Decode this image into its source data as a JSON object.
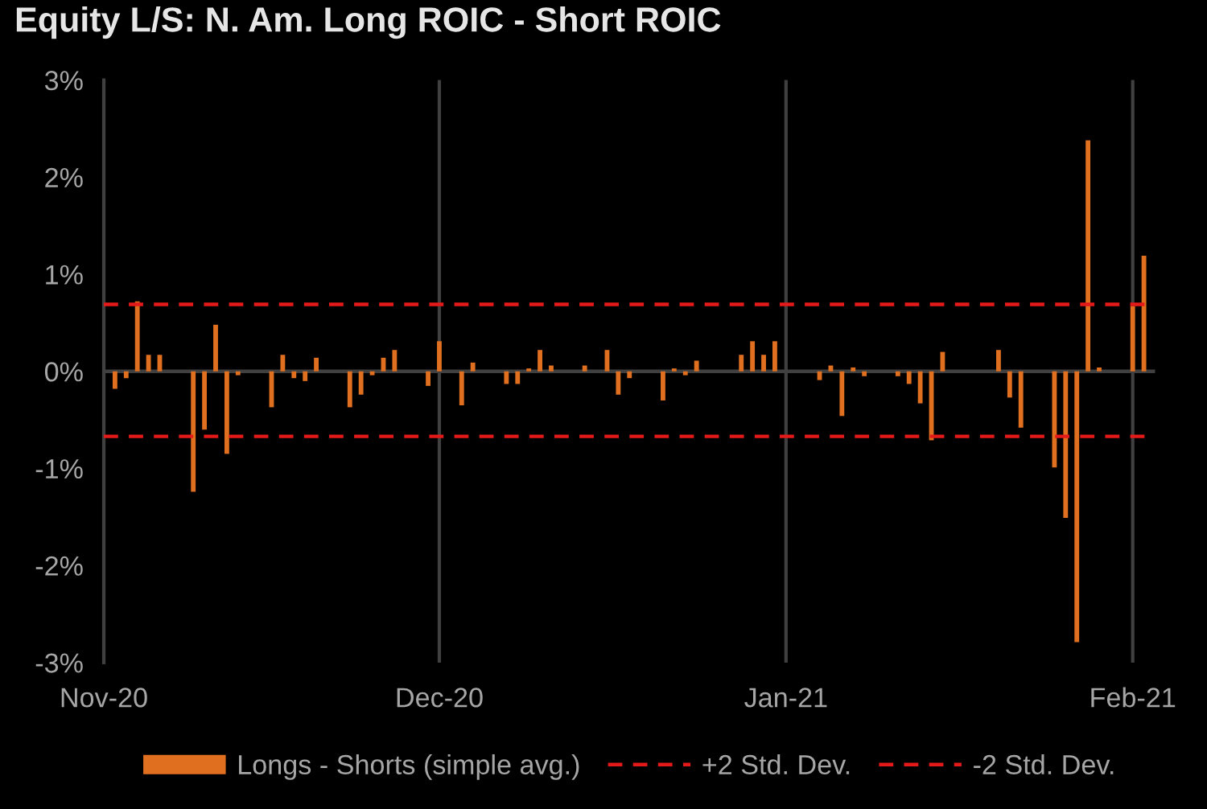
{
  "chart_data": {
    "type": "bar",
    "title": "Equity L/S: N. Am. Long ROIC - Short ROIC",
    "x": [
      "2020-11-02",
      "2020-11-03",
      "2020-11-04",
      "2020-11-05",
      "2020-11-06",
      "2020-11-09",
      "2020-11-10",
      "2020-11-11",
      "2020-11-12",
      "2020-11-13",
      "2020-11-16",
      "2020-11-17",
      "2020-11-18",
      "2020-11-19",
      "2020-11-20",
      "2020-11-23",
      "2020-11-24",
      "2020-11-25",
      "2020-11-26",
      "2020-11-27",
      "2020-11-30",
      "2020-12-01",
      "2020-12-03",
      "2020-12-04",
      "2020-12-07",
      "2020-12-08",
      "2020-12-09",
      "2020-12-10",
      "2020-12-11",
      "2020-12-14",
      "2020-12-16",
      "2020-12-17",
      "2020-12-18",
      "2020-12-21",
      "2020-12-22",
      "2020-12-23",
      "2020-12-24",
      "2020-12-28",
      "2020-12-29",
      "2020-12-30",
      "2020-12-31",
      "2021-01-04",
      "2021-01-05",
      "2021-01-06",
      "2021-01-07",
      "2021-01-08",
      "2021-01-11",
      "2021-01-12",
      "2021-01-13",
      "2021-01-14",
      "2021-01-15",
      "2021-01-20",
      "2021-01-21",
      "2021-01-22",
      "2021-01-25",
      "2021-01-26",
      "2021-01-27",
      "2021-01-28",
      "2021-01-29",
      "2021-02-01",
      "2021-02-02"
    ],
    "series": [
      {
        "name": "Longs - Shorts (simple avg.)",
        "color": "#e07020",
        "values": [
          -0.18,
          -0.07,
          0.72,
          0.17,
          0.17,
          -1.24,
          -0.6,
          0.48,
          -0.85,
          -0.04,
          -0.37,
          0.17,
          -0.07,
          -0.1,
          0.14,
          -0.37,
          -0.24,
          -0.04,
          0.14,
          0.22,
          -0.15,
          0.31,
          -0.35,
          0.09,
          -0.13,
          -0.13,
          0.03,
          0.22,
          0.06,
          0.06,
          0.22,
          -0.24,
          -0.07,
          -0.3,
          0.03,
          -0.04,
          0.11,
          0.17,
          0.31,
          0.17,
          0.31,
          -0.09,
          0.06,
          -0.46,
          0.04,
          -0.05,
          -0.05,
          -0.13,
          -0.33,
          -0.71,
          0.2,
          0.22,
          -0.27,
          -0.58,
          -0.99,
          -1.51,
          -2.79,
          2.38,
          0.04,
          0.67,
          1.19
        ]
      }
    ],
    "xlim": [
      "2020-11-01",
      "2021-02-03"
    ],
    "xticks": [
      {
        "value": "2020-11-01",
        "label": "Nov-20"
      },
      {
        "value": "2020-12-01",
        "label": "Dec-20"
      },
      {
        "value": "2021-01-01",
        "label": "Jan-21"
      },
      {
        "value": "2021-02-01",
        "label": "Feb-21"
      }
    ],
    "ylim": [
      -3,
      3
    ],
    "yticks": [
      {
        "value": -3,
        "label": "-3%"
      },
      {
        "value": -2,
        "label": "-2%"
      },
      {
        "value": -1,
        "label": "-1%"
      },
      {
        "value": 0,
        "label": "0%"
      },
      {
        "value": 1,
        "label": "1%"
      },
      {
        "value": 2,
        "label": "2%"
      },
      {
        "value": 3,
        "label": "3%"
      }
    ],
    "ref_lines": [
      {
        "axis": "y",
        "value": 0,
        "color": "#404040",
        "line_style": "solid"
      },
      {
        "axis": "y",
        "value": 0.69,
        "label": "+2 Std. Dev.",
        "color": "#e41a1a",
        "line_style": "dashed"
      },
      {
        "axis": "y",
        "value": -0.67,
        "label": "-2 Std. Dev.",
        "color": "#e41a1a",
        "line_style": "dashed"
      }
    ],
    "grid": "x",
    "legend": "bottom"
  }
}
